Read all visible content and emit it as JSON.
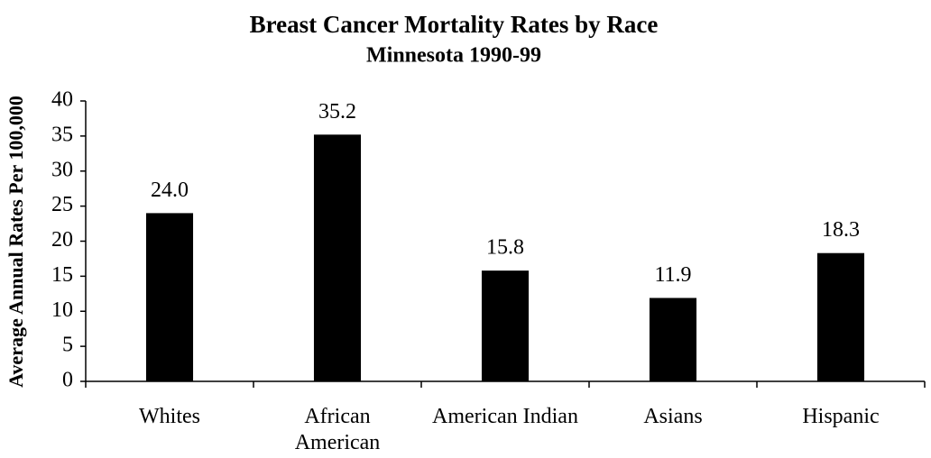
{
  "chart_data": {
    "type": "bar",
    "title": "Breast Cancer Mortality Rates by Race",
    "subtitle": "Minnesota 1990-99",
    "y_label": "Average Annual Rates Per 100,000",
    "categories": [
      "Whites",
      "African American",
      "American Indian",
      "Asians",
      "Hispanic"
    ],
    "values": [
      24.0,
      35.2,
      15.8,
      11.9,
      18.3
    ],
    "value_labels": [
      "24.0",
      "35.2",
      "15.8",
      "11.9",
      "18.3"
    ],
    "color": "#000000",
    "ylim": [
      0,
      40
    ],
    "yticks": [
      0,
      5,
      10,
      15,
      20,
      25,
      30,
      35,
      40
    ],
    "grid": false
  }
}
